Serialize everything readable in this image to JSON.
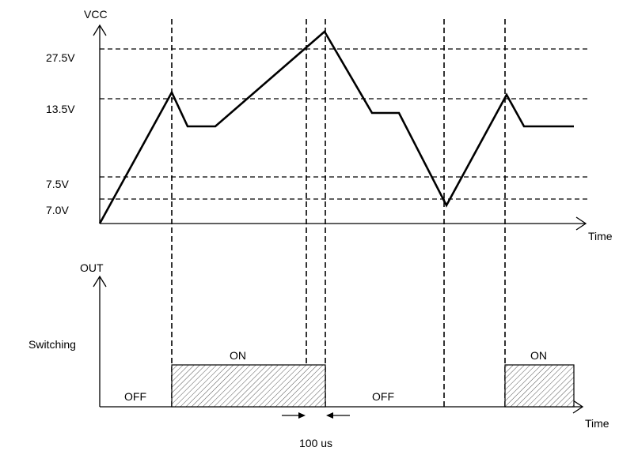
{
  "vcc_axis": {
    "label": "VCC",
    "x_label": "Time"
  },
  "out_axis": {
    "label": "OUT",
    "x_label": "Time"
  },
  "levels": [
    "27.5V",
    "13.5V",
    "7.5V",
    "7.0V"
  ],
  "row_label": "Switching",
  "states": [
    "OFF",
    "ON",
    "OFF",
    "ON"
  ],
  "delay_label": "100 us"
}
